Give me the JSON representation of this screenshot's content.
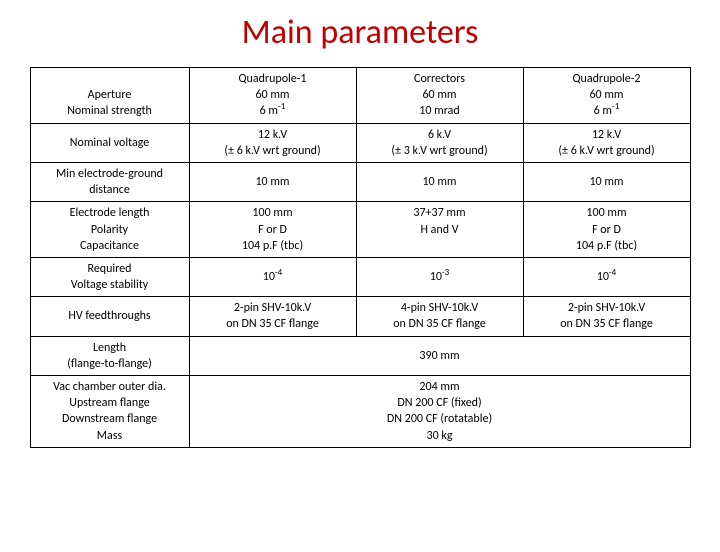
{
  "title": "Main parameters",
  "rows": [
    {
      "label": " \nAperture\nNominal strength",
      "c1": "Quadrupole-1\n60 mm\n6 m^-1",
      "c2": "Correctors\n60 mm\n10 mrad",
      "c3": "Quadrupole-2\n60 mm\n6 m^-1"
    },
    {
      "label": "Nominal voltage",
      "c1": "12 k.V\n(± 6 k.V wrt ground)",
      "c2": "6 k.V\n(± 3 k.V wrt ground)",
      "c3": "12 k.V\n(± 6 k.V wrt ground)"
    },
    {
      "label": "Min electrode-ground\ndistance",
      "c1": "10 mm",
      "c2": "10 mm",
      "c3": "10 mm"
    },
    {
      "label": "Electrode length\nPolarity\nCapacitance",
      "c1": "100 mm\nF or D\n104 p.F (tbc)",
      "c2": "37+37 mm\nH and V\n ",
      "c3": "100 mm\nF or D\n104 p.F (tbc)"
    },
    {
      "label": "Required\nVoltage stability",
      "c1": "10^-4",
      "c2": "10^-3",
      "c3": "10^-4"
    },
    {
      "label": "HV feedthroughs",
      "c1": "2-pin SHV-10k.V\non DN 35 CF flange",
      "c2": "4-pin SHV-10k.V\non DN 35 CF flange",
      "c3": "2-pin SHV-10k.V\non DN 35 CF flange"
    },
    {
      "label": "Length\n(flange-to-flange)",
      "merged": "390 mm"
    },
    {
      "label": "Vac chamber outer dia.\nUpstream flange\nDownstream flange\nMass",
      "merged": "204 mm\nDN 200 CF (fixed)\nDN 200 CF (rotatable)\n30 kg"
    }
  ]
}
